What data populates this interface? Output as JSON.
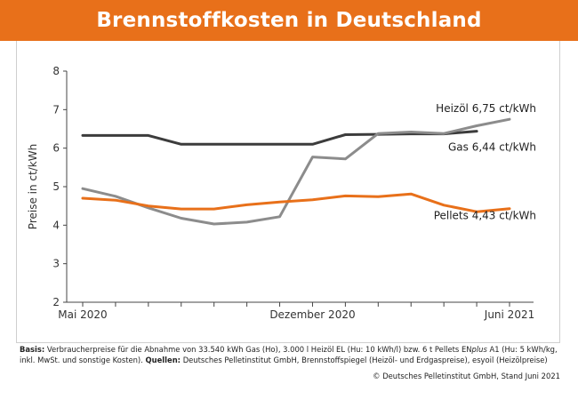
{
  "header": {
    "title": "Brennstoffkosten in Deutschland"
  },
  "footnote": {
    "basis_label": "Basis:",
    "basis_text": " Verbraucherpreise für die Abnahme von 33.540 kWh Gas (Ho), 3.000 l Heizöl EL (Hu: 10 kWh/l) bzw. 6 t Pellets EN",
    "basis_italic": "plus",
    "basis_text2": " A1 (Hu: 5 kWh/kg, inkl. MwSt. und sonstige Kosten). ",
    "sources_label": "Quellen:",
    "sources_text": " Deutsches Pelletinstitut GmbH, Brennstoffspiegel (Heizöl- und Erdgaspreise), esyoil (Heizölpreise)",
    "credit": "© Deutsches Pelletinstitut GmbH, Stand Juni 2021"
  },
  "chart_data": {
    "type": "line",
    "title": "Brennstoffkosten in Deutschland",
    "ylabel": "Preise in ct/kWh",
    "xlabel": "",
    "ylim": [
      2,
      8
    ],
    "yticks": [
      2,
      3,
      4,
      5,
      6,
      7,
      8
    ],
    "x": [
      "2020-05",
      "2020-06",
      "2020-07",
      "2020-08",
      "2020-09",
      "2020-10",
      "2020-11",
      "2020-12",
      "2021-01",
      "2021-02",
      "2021-03",
      "2021-04",
      "2021-05",
      "2021-06"
    ],
    "xtick_labels": [
      {
        "x": "2020-05",
        "label": "Mai 2020"
      },
      {
        "x": "2020-12",
        "label": "Dezember 2020"
      },
      {
        "x": "2021-06",
        "label": "Juni 2021"
      }
    ],
    "grid": false,
    "series": [
      {
        "name": "Gas",
        "end_label": "Gas 6,44 ct/kWh",
        "color": "#3c3c3c",
        "values": [
          6.33,
          6.33,
          6.33,
          6.1,
          6.1,
          6.1,
          6.1,
          6.1,
          6.35,
          6.36,
          6.37,
          6.37,
          6.44,
          null
        ]
      },
      {
        "name": "Heizöl",
        "end_label": "Heizöl 6,75 ct/kWh",
        "color": "#8c8c8c",
        "values": [
          4.95,
          4.75,
          4.45,
          4.18,
          4.03,
          4.08,
          4.22,
          5.77,
          5.72,
          6.38,
          6.42,
          6.38,
          6.58,
          6.75
        ]
      },
      {
        "name": "Pellets",
        "end_label": "Pellets 4,43 ct/kWh",
        "color": "#e8701a",
        "values": [
          4.7,
          4.65,
          4.5,
          4.42,
          4.42,
          4.53,
          4.6,
          4.66,
          4.76,
          4.74,
          4.81,
          4.52,
          4.35,
          4.43
        ]
      }
    ]
  }
}
